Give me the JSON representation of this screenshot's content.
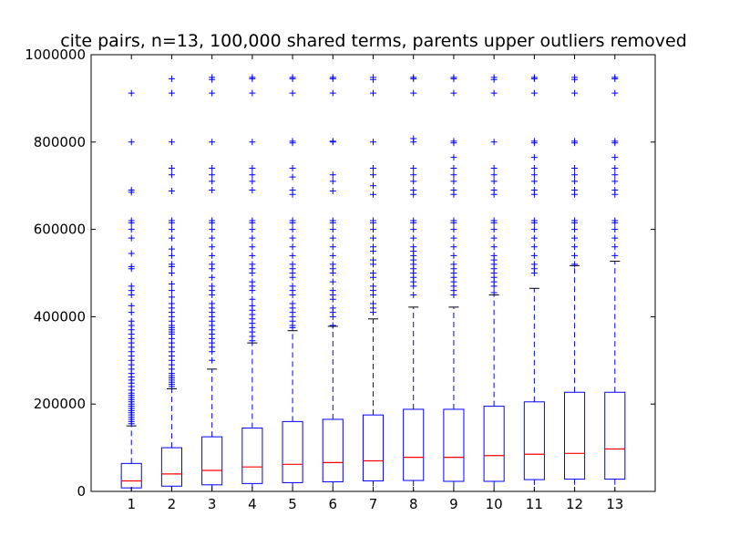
{
  "chart_data": {
    "type": "boxplot",
    "title": "cite pairs, n=13, 100,000 shared terms, parents upper outliers removed",
    "xlabel": "",
    "ylabel": "",
    "ylim": [
      0,
      1000000
    ],
    "yticks": [
      0,
      200000,
      400000,
      600000,
      800000,
      1000000
    ],
    "ytick_labels": [
      "0",
      "200000",
      "400000",
      "600000",
      "800000",
      "1000000"
    ],
    "categories": [
      "1",
      "2",
      "3",
      "4",
      "5",
      "6",
      "7",
      "8",
      "9",
      "10",
      "11",
      "12",
      "13"
    ],
    "colors": {
      "box": "#0000ff",
      "median": "#ff0000",
      "whisker": "#0000ff",
      "cap": "#000000",
      "flier": "#0000ff"
    },
    "boxes": [
      {
        "q1": 8000,
        "median": 24000,
        "q3": 64000,
        "whisker_low": 0,
        "whisker_high": 150000,
        "outliers": [
          155000,
          160000,
          165000,
          170000,
          175000,
          180000,
          185000,
          190000,
          195000,
          200000,
          205000,
          210000,
          215000,
          220000,
          225000,
          232000,
          240000,
          248000,
          255000,
          262000,
          270000,
          280000,
          290000,
          300000,
          310000,
          320000,
          330000,
          340000,
          350000,
          360000,
          370000,
          380000,
          390000,
          410000,
          425000,
          450000,
          460000,
          470000,
          510000,
          515000,
          545000,
          580000,
          600000,
          615000,
          620000,
          685000,
          690000,
          800000,
          912000
        ]
      },
      {
        "q1": 12000,
        "median": 40000,
        "q3": 100000,
        "whisker_low": 0,
        "whisker_high": 235000,
        "outliers": [
          240000,
          245000,
          250000,
          255000,
          260000,
          265000,
          270000,
          280000,
          290000,
          300000,
          310000,
          320000,
          330000,
          340000,
          350000,
          360000,
          365000,
          370000,
          375000,
          380000,
          390000,
          400000,
          410000,
          420000,
          430000,
          445000,
          460000,
          475000,
          500000,
          515000,
          520000,
          540000,
          555000,
          580000,
          600000,
          615000,
          620000,
          688000,
          725000,
          740000,
          800000,
          912000,
          945000
        ]
      },
      {
        "q1": 15000,
        "median": 48000,
        "q3": 125000,
        "whisker_low": 0,
        "whisker_high": 280000,
        "outliers": [
          300000,
          320000,
          330000,
          340000,
          350000,
          360000,
          370000,
          380000,
          390000,
          400000,
          410000,
          420000,
          430000,
          450000,
          460000,
          470000,
          490000,
          510000,
          520000,
          540000,
          560000,
          580000,
          600000,
          615000,
          620000,
          690000,
          710000,
          725000,
          740000,
          800000,
          912000,
          943000,
          948000
        ]
      },
      {
        "q1": 18000,
        "median": 56000,
        "q3": 145000,
        "whisker_low": 0,
        "whisker_high": 340000,
        "outliers": [
          345000,
          355000,
          365000,
          375000,
          385000,
          395000,
          405000,
          415000,
          425000,
          440000,
          460000,
          470000,
          480000,
          500000,
          510000,
          520000,
          540000,
          560000,
          580000,
          600000,
          615000,
          620000,
          690000,
          710000,
          725000,
          740000,
          800000,
          912000,
          945000,
          948000
        ]
      },
      {
        "q1": 20000,
        "median": 62000,
        "q3": 160000,
        "whisker_low": 0,
        "whisker_high": 368000,
        "outliers": [
          375000,
          380000,
          390000,
          400000,
          410000,
          420000,
          430000,
          450000,
          460000,
          470000,
          490000,
          500000,
          510000,
          520000,
          540000,
          560000,
          580000,
          600000,
          615000,
          620000,
          680000,
          690000,
          720000,
          740000,
          798000,
          802000,
          912000,
          945000,
          948000
        ]
      },
      {
        "q1": 22000,
        "median": 66000,
        "q3": 165000,
        "whisker_low": 0,
        "whisker_high": 378000,
        "outliers": [
          380000,
          400000,
          410000,
          420000,
          440000,
          450000,
          460000,
          480000,
          500000,
          510000,
          520000,
          540000,
          560000,
          580000,
          600000,
          615000,
          620000,
          688000,
          710000,
          725000,
          800000,
          802000,
          912000,
          945000,
          948000
        ]
      },
      {
        "q1": 24000,
        "median": 70000,
        "q3": 175000,
        "whisker_low": 0,
        "whisker_high": 395000,
        "outliers": [
          410000,
          420000,
          430000,
          450000,
          460000,
          470000,
          490000,
          500000,
          520000,
          530000,
          550000,
          560000,
          580000,
          600000,
          615000,
          620000,
          680000,
          700000,
          725000,
          740000,
          800000,
          912000,
          943000,
          948000
        ]
      },
      {
        "q1": 25000,
        "median": 78000,
        "q3": 188000,
        "whisker_low": 0,
        "whisker_high": 422000,
        "outliers": [
          450000,
          470000,
          480000,
          490000,
          500000,
          510000,
          520000,
          530000,
          540000,
          550000,
          560000,
          580000,
          600000,
          615000,
          620000,
          680000,
          690000,
          710000,
          725000,
          740000,
          800000,
          808000,
          912000,
          945000,
          948000
        ]
      },
      {
        "q1": 23000,
        "median": 78000,
        "q3": 188000,
        "whisker_low": 0,
        "whisker_high": 422000,
        "outliers": [
          450000,
          460000,
          470000,
          480000,
          490000,
          500000,
          510000,
          520000,
          540000,
          560000,
          580000,
          600000,
          615000,
          620000,
          680000,
          690000,
          710000,
          725000,
          740000,
          765000,
          798000,
          802000,
          912000,
          945000,
          948000
        ]
      },
      {
        "q1": 23000,
        "median": 82000,
        "q3": 195000,
        "whisker_low": 0,
        "whisker_high": 450000,
        "outliers": [
          455000,
          470000,
          480000,
          490000,
          500000,
          510000,
          520000,
          530000,
          540000,
          560000,
          580000,
          600000,
          615000,
          620000,
          680000,
          690000,
          710000,
          725000,
          740000,
          800000,
          912000,
          943000,
          948000
        ]
      },
      {
        "q1": 27000,
        "median": 85000,
        "q3": 205000,
        "whisker_low": 0,
        "whisker_high": 465000,
        "outliers": [
          500000,
          510000,
          520000,
          540000,
          560000,
          580000,
          600000,
          615000,
          620000,
          680000,
          690000,
          710000,
          725000,
          740000,
          765000,
          798000,
          802000,
          912000,
          945000,
          948000
        ]
      },
      {
        "q1": 28000,
        "median": 87000,
        "q3": 227000,
        "whisker_low": 0,
        "whisker_high": 517000,
        "outliers": [
          520000,
          540000,
          560000,
          580000,
          600000,
          615000,
          620000,
          680000,
          690000,
          710000,
          725000,
          740000,
          798000,
          802000,
          912000,
          943000,
          948000
        ]
      },
      {
        "q1": 28000,
        "median": 97000,
        "q3": 227000,
        "whisker_low": 0,
        "whisker_high": 527000,
        "outliers": [
          540000,
          560000,
          580000,
          600000,
          615000,
          620000,
          680000,
          690000,
          710000,
          725000,
          740000,
          765000,
          798000,
          802000,
          912000,
          945000,
          948000
        ]
      }
    ]
  }
}
